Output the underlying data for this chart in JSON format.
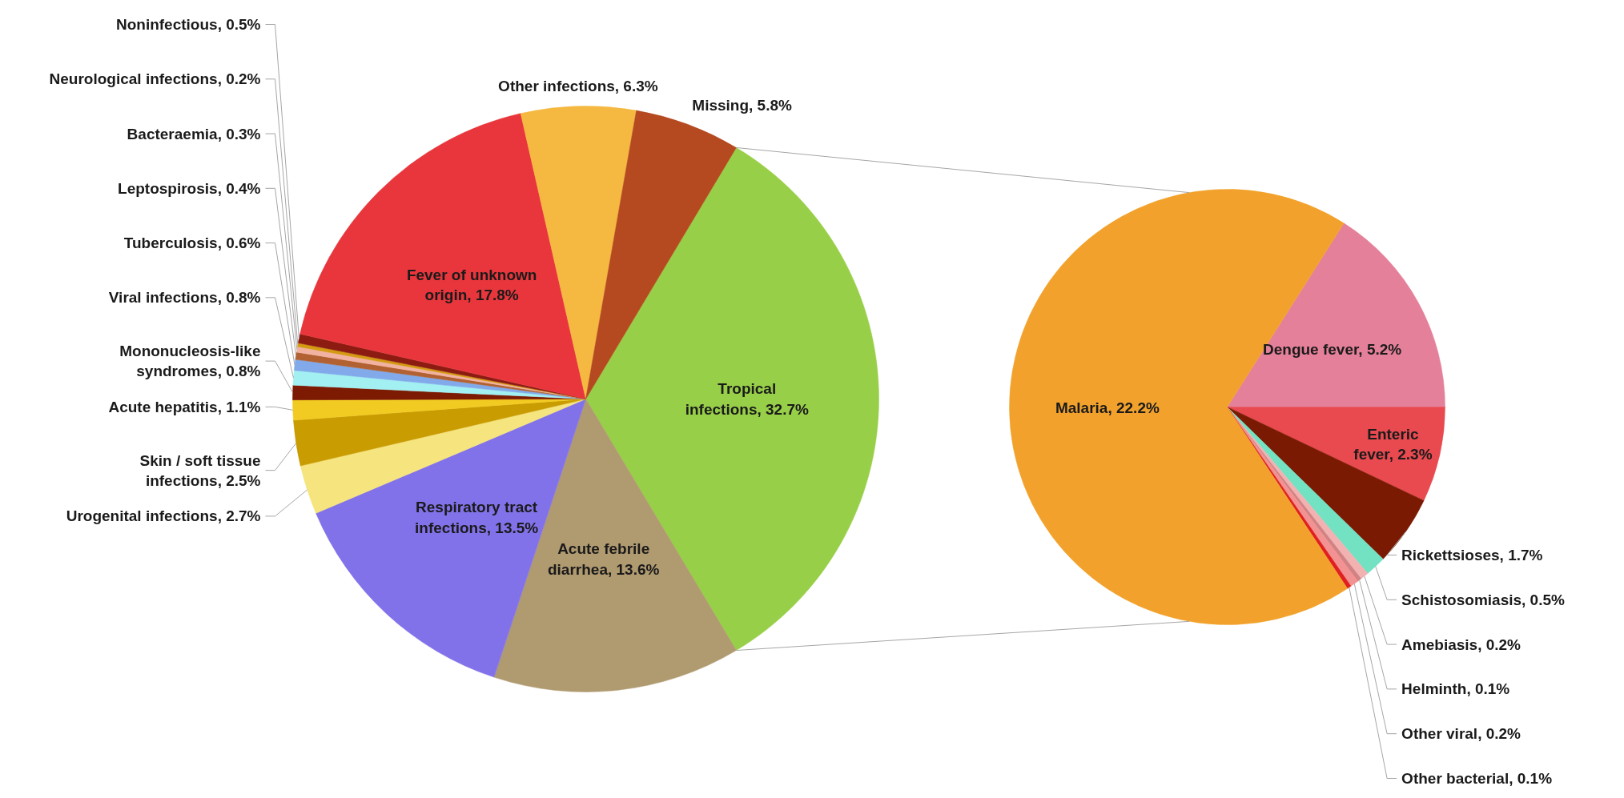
{
  "chart_data": [
    {
      "type": "pie",
      "categories": [
        "Tropical infections",
        "Acute febrile diarrhea",
        "Respiratory tract infections",
        "Urogenital infections",
        "Skin / soft tissue infections",
        "Acute hepatitis",
        "Mononucleosis-like syndromes",
        "Viral infections",
        "Tuberculosis",
        "Leptospirosis",
        "Bacteraemia",
        "Neurological infections",
        "Noninfectious",
        "Fever of unknown origin",
        "Other infections",
        "Missing"
      ],
      "values": [
        32.7,
        13.6,
        13.5,
        2.7,
        2.5,
        1.1,
        0.8,
        0.8,
        0.6,
        0.4,
        0.3,
        0.2,
        0.5,
        17.8,
        6.3,
        5.8
      ],
      "value_labels": [
        "32.7%",
        "13.6%",
        "13.5%",
        "2.7%",
        "2.5%",
        "1.1%",
        "0.8%",
        "0.8%",
        "0.6%",
        "0.4%",
        "0.3%",
        "0.2%",
        "0.5%",
        "17.8%",
        "6.3%",
        "5.8%"
      ],
      "colors": [
        "#98cf48",
        "#b09a70",
        "#8272ea",
        "#f6e47e",
        "#c99c02",
        "#f2cb22",
        "#7c1a02",
        "#a2f0f2",
        "#82aaea",
        "#b26232",
        "#f2b2a2",
        "#d49a12",
        "#8c1c12",
        "#e8363c",
        "#f5b942",
        "#b5491f"
      ]
    },
    {
      "type": "pie",
      "categories": [
        "Dengue fever",
        "Enteric fever",
        "Rickettsioses",
        "Schistosomiasis",
        "Amebiasis",
        "Helminth",
        "Other viral",
        "Other bacterial",
        "Malaria"
      ],
      "values": [
        5.2,
        2.3,
        1.7,
        0.5,
        0.2,
        0.1,
        0.2,
        0.1,
        22.2
      ],
      "value_labels": [
        "5.2%",
        "2.3%",
        "1.7%",
        "0.5%",
        "0.2%",
        "0.1%",
        "0.2%",
        "0.1%",
        "22.2%"
      ],
      "colors": [
        "#e4809a",
        "#e84a50",
        "#7b1a02",
        "#72e2c2",
        "#f2b2b2",
        "#d28282",
        "#f29292",
        "#e02020",
        "#f2a22c"
      ]
    }
  ]
}
